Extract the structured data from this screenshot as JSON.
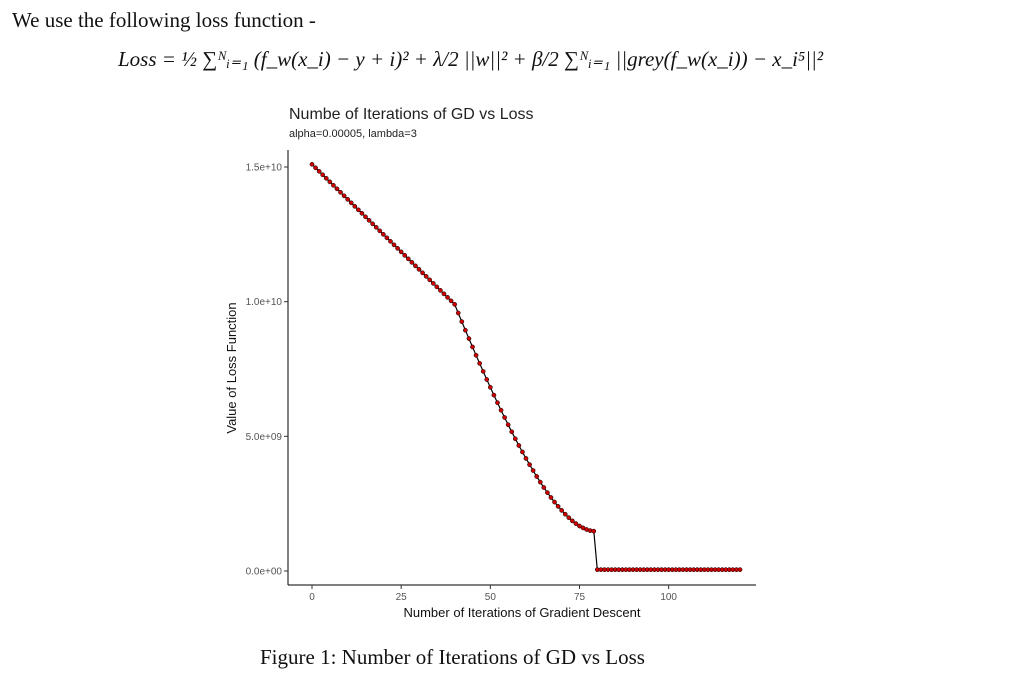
{
  "document": {
    "intro_text": "We use the following loss function -",
    "formula_text": "Loss = ½ ∑ᴺᵢ₌₁ (f_w(x_i) − y + i)² + λ/2 ||w||² + β/2 ∑ᴺᵢ₌₁ ||grey(f_w(x_i)) − x_i⁵||²",
    "caption": "Figure 1: Number of Iterations of GD vs Loss"
  },
  "chart_data": {
    "type": "line",
    "title": "Numbe of Iterations of GD vs Loss",
    "subtitle": "alpha=0.00005, lambda=3",
    "xlabel": "Number of Iterations of Gradient Descent",
    "ylabel": "Value of Loss Function",
    "xlim": [
      0,
      120
    ],
    "ylim": [
      0,
      15000000000
    ],
    "x_ticks": [
      0,
      25,
      50,
      75,
      100
    ],
    "x_tick_labels": [
      "0",
      "25",
      "50",
      "75",
      "100"
    ],
    "y_ticks": [
      0,
      5000000000,
      10000000000,
      15000000000
    ],
    "y_tick_labels": [
      "0.0e+00",
      "5.0e+09",
      "1.0e+10",
      "1.5e+10"
    ],
    "grid": false,
    "line_color": "#000000",
    "marker_color": "#cc0000",
    "series": [
      {
        "x": [
          0,
          1,
          2,
          3,
          4,
          5,
          6,
          7,
          8,
          9,
          10,
          11,
          12,
          13,
          14,
          15,
          16,
          17,
          18,
          19,
          20,
          21,
          22,
          23,
          24,
          25,
          26,
          27,
          28,
          29,
          30,
          31,
          32,
          33,
          34,
          35,
          36,
          37,
          38,
          39,
          40,
          41,
          42,
          43,
          44,
          45,
          46,
          47,
          48,
          49,
          50,
          51,
          52,
          53,
          54,
          55,
          56,
          57,
          58,
          59,
          60,
          61,
          62,
          63,
          64,
          65,
          66,
          67,
          68,
          69,
          70,
          71,
          72,
          73,
          74,
          75,
          76,
          77,
          78,
          79,
          80,
          81,
          82,
          83,
          84,
          85,
          86,
          87,
          88,
          89,
          90,
          91,
          92,
          93,
          94,
          95,
          96,
          97,
          98,
          99,
          100,
          101,
          102,
          103,
          104,
          105,
          106,
          107,
          108,
          109,
          110,
          111,
          112,
          113,
          114,
          115,
          116,
          117,
          118,
          119,
          120
        ],
        "values": [
          15100000000,
          14970000000,
          14840000000,
          14710000000,
          14580000000,
          14450000000,
          14320000000,
          14190000000,
          14060000000,
          13930000000,
          13800000000,
          13670000000,
          13540000000,
          13410000000,
          13280000000,
          13150000000,
          13020000000,
          12890000000,
          12760000000,
          12630000000,
          12500000000,
          12370000000,
          12240000000,
          12110000000,
          11980000000,
          11850000000,
          11720000000,
          11590000000,
          11460000000,
          11330000000,
          11200000000,
          11070000000,
          10940000000,
          10810000000,
          10680000000,
          10550000000,
          10420000000,
          10290000000,
          10160000000,
          10030000000,
          9900000000,
          9580000000,
          9260000000,
          8940000000,
          8630000000,
          8320000000,
          8010000000,
          7710000000,
          7410000000,
          7110000000,
          6820000000,
          6530000000,
          6250000000,
          5970000000,
          5700000000,
          5430000000,
          5170000000,
          4910000000,
          4660000000,
          4420000000,
          4180000000,
          3950000000,
          3730000000,
          3510000000,
          3300000000,
          3100000000,
          2910000000,
          2730000000,
          2560000000,
          2400000000,
          2250000000,
          2110000000,
          1980000000,
          1860000000,
          1760000000,
          1670000000,
          1600000000,
          1540000000,
          1500000000,
          1480000000,
          50000000,
          50000000,
          50000000,
          50000000,
          50000000,
          50000000,
          50000000,
          50000000,
          50000000,
          50000000,
          50000000,
          50000000,
          50000000,
          50000000,
          50000000,
          50000000,
          50000000,
          50000000,
          50000000,
          50000000,
          50000000,
          50000000,
          50000000,
          50000000,
          50000000,
          50000000,
          50000000,
          50000000,
          50000000,
          50000000,
          50000000,
          50000000,
          50000000,
          50000000,
          50000000,
          50000000,
          50000000,
          50000000,
          50000000,
          50000000,
          50000000
        ]
      }
    ]
  }
}
